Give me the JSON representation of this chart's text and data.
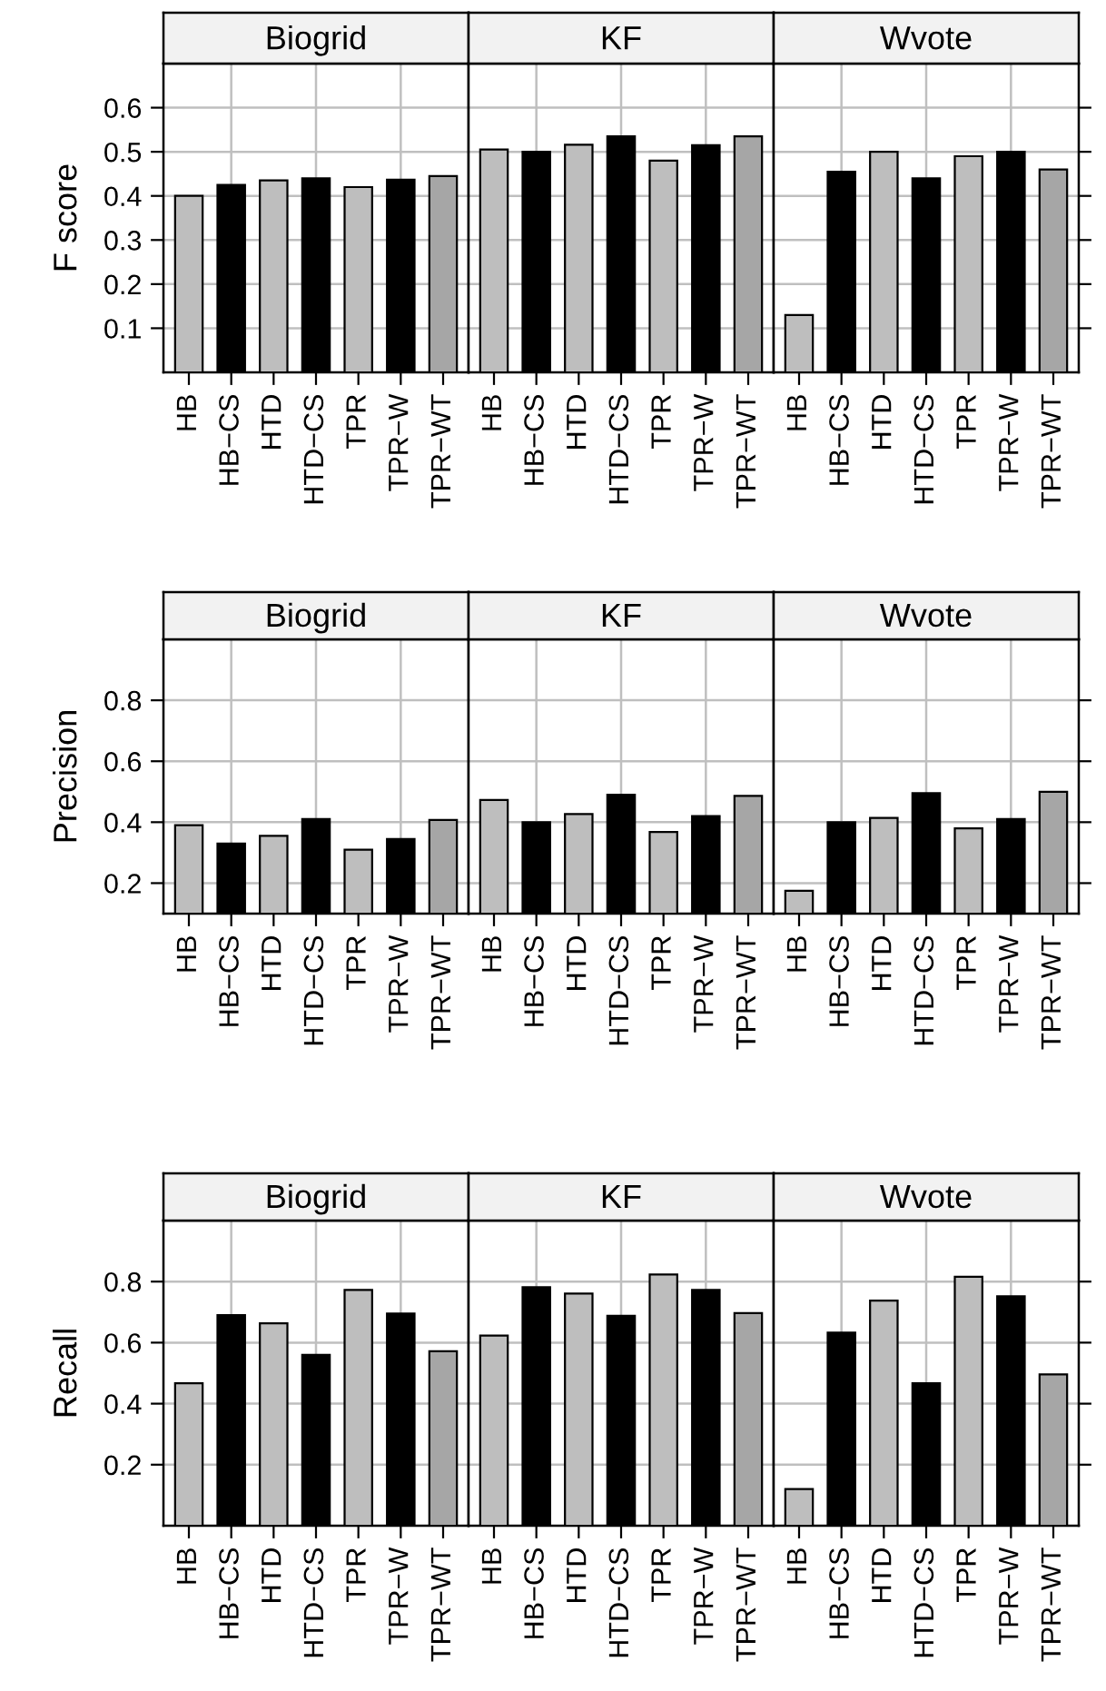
{
  "chart_data": [
    {
      "type": "bar",
      "title": "Biogrid",
      "ylabel": "F score",
      "categories": [
        "HB",
        "HB−CS",
        "HTD",
        "HTD−CS",
        "TPR",
        "TPR−W",
        "TPR−WT"
      ],
      "values": [
        0.4,
        0.425,
        0.435,
        0.44,
        0.42,
        0.437,
        0.445
      ],
      "colors": [
        "#bebebe",
        "#000000",
        "#bebebe",
        "#000000",
        "#bebebe",
        "#000000",
        "#a6a6a6"
      ],
      "ylim": [
        0,
        0.7
      ],
      "yticks": [
        0.1,
        0.2,
        0.3,
        0.4,
        0.5,
        0.6
      ],
      "grid": true
    },
    {
      "type": "bar",
      "title": "KF",
      "categories": [
        "HB",
        "HB−CS",
        "HTD",
        "HTD−CS",
        "TPR",
        "TPR−W",
        "TPR−WT"
      ],
      "values": [
        0.505,
        0.5,
        0.516,
        0.535,
        0.48,
        0.515,
        0.535
      ],
      "colors": [
        "#bebebe",
        "#000000",
        "#bebebe",
        "#000000",
        "#bebebe",
        "#000000",
        "#a6a6a6"
      ],
      "ylim": [
        0,
        0.7
      ],
      "yticks": [
        0.1,
        0.2,
        0.3,
        0.4,
        0.5,
        0.6
      ],
      "grid": true,
      "tick_labels": "x"
    },
    {
      "type": "bar",
      "title": "Wvote",
      "categories": [
        "HB",
        "HB−CS",
        "HTD",
        "HTD−CS",
        "TPR",
        "TPR−W",
        "TPR−WT"
      ],
      "values": [
        0.13,
        0.455,
        0.5,
        0.44,
        0.49,
        0.5,
        0.46
      ],
      "colors": [
        "#bebebe",
        "#000000",
        "#bebebe",
        "#000000",
        "#bebebe",
        "#000000",
        "#a6a6a6"
      ],
      "ylim": [
        0,
        0.7
      ],
      "yticks": [
        0.1,
        0.2,
        0.3,
        0.4,
        0.5,
        0.6
      ],
      "grid": true,
      "tick_labels": "x"
    },
    {
      "type": "bar",
      "title": "Biogrid",
      "ylabel": "Precision",
      "categories": [
        "HB",
        "HB−CS",
        "HTD",
        "HTD−CS",
        "TPR",
        "TPR−W",
        "TPR−WT"
      ],
      "values": [
        0.39,
        0.33,
        0.355,
        0.41,
        0.31,
        0.345,
        0.407
      ],
      "colors": [
        "#bebebe",
        "#000000",
        "#bebebe",
        "#000000",
        "#bebebe",
        "#000000",
        "#a6a6a6"
      ],
      "ylim": [
        0.1,
        1.0
      ],
      "yticks": [
        0.2,
        0.4,
        0.6,
        0.8
      ],
      "grid": true
    },
    {
      "type": "bar",
      "title": "KF",
      "categories": [
        "HB",
        "HB−CS",
        "HTD",
        "HTD−CS",
        "TPR",
        "TPR−W",
        "TPR−WT"
      ],
      "values": [
        0.473,
        0.4,
        0.427,
        0.49,
        0.368,
        0.42,
        0.486
      ],
      "colors": [
        "#bebebe",
        "#000000",
        "#bebebe",
        "#000000",
        "#bebebe",
        "#000000",
        "#a6a6a6"
      ],
      "ylim": [
        0.1,
        1.0
      ],
      "yticks": [
        0.2,
        0.4,
        0.6,
        0.8
      ],
      "grid": true,
      "tick_labels": "x"
    },
    {
      "type": "bar",
      "title": "Wvote",
      "categories": [
        "HB",
        "HB−CS",
        "HTD",
        "HTD−CS",
        "TPR",
        "TPR−W",
        "TPR−WT"
      ],
      "values": [
        0.175,
        0.4,
        0.414,
        0.495,
        0.38,
        0.41,
        0.5
      ],
      "colors": [
        "#bebebe",
        "#000000",
        "#bebebe",
        "#000000",
        "#bebebe",
        "#000000",
        "#a6a6a6"
      ],
      "ylim": [
        0.1,
        1.0
      ],
      "yticks": [
        0.2,
        0.4,
        0.6,
        0.8
      ],
      "grid": true,
      "tick_labels": "x"
    },
    {
      "type": "bar",
      "title": "Biogrid",
      "ylabel": "Recall",
      "categories": [
        "HB",
        "HB−CS",
        "HTD",
        "HTD−CS",
        "TPR",
        "TPR−W",
        "TPR−WT"
      ],
      "values": [
        0.467,
        0.69,
        0.663,
        0.56,
        0.773,
        0.695,
        0.572
      ],
      "colors": [
        "#bebebe",
        "#000000",
        "#bebebe",
        "#000000",
        "#bebebe",
        "#000000",
        "#a6a6a6"
      ],
      "ylim": [
        0,
        1.0
      ],
      "yticks": [
        0.2,
        0.4,
        0.6,
        0.8
      ],
      "grid": true
    },
    {
      "type": "bar",
      "title": "KF",
      "categories": [
        "HB",
        "HB−CS",
        "HTD",
        "HTD−CS",
        "TPR",
        "TPR−W",
        "TPR−WT"
      ],
      "values": [
        0.623,
        0.782,
        0.761,
        0.688,
        0.823,
        0.773,
        0.697
      ],
      "colors": [
        "#bebebe",
        "#000000",
        "#bebebe",
        "#000000",
        "#bebebe",
        "#000000",
        "#a6a6a6"
      ],
      "ylim": [
        0,
        1.0
      ],
      "yticks": [
        0.2,
        0.4,
        0.6,
        0.8
      ],
      "grid": true,
      "tick_labels": "x"
    },
    {
      "type": "bar",
      "title": "Wvote",
      "categories": [
        "HB",
        "HB−CS",
        "HTD",
        "HTD−CS",
        "TPR",
        "TPR−W",
        "TPR−WT"
      ],
      "values": [
        0.12,
        0.633,
        0.738,
        0.467,
        0.816,
        0.752,
        0.496
      ],
      "colors": [
        "#bebebe",
        "#000000",
        "#bebebe",
        "#000000",
        "#bebebe",
        "#000000",
        "#a6a6a6"
      ],
      "ylim": [
        0,
        1.0
      ],
      "yticks": [
        0.2,
        0.4,
        0.6,
        0.8
      ],
      "grid": true,
      "tick_labels": "x"
    }
  ]
}
